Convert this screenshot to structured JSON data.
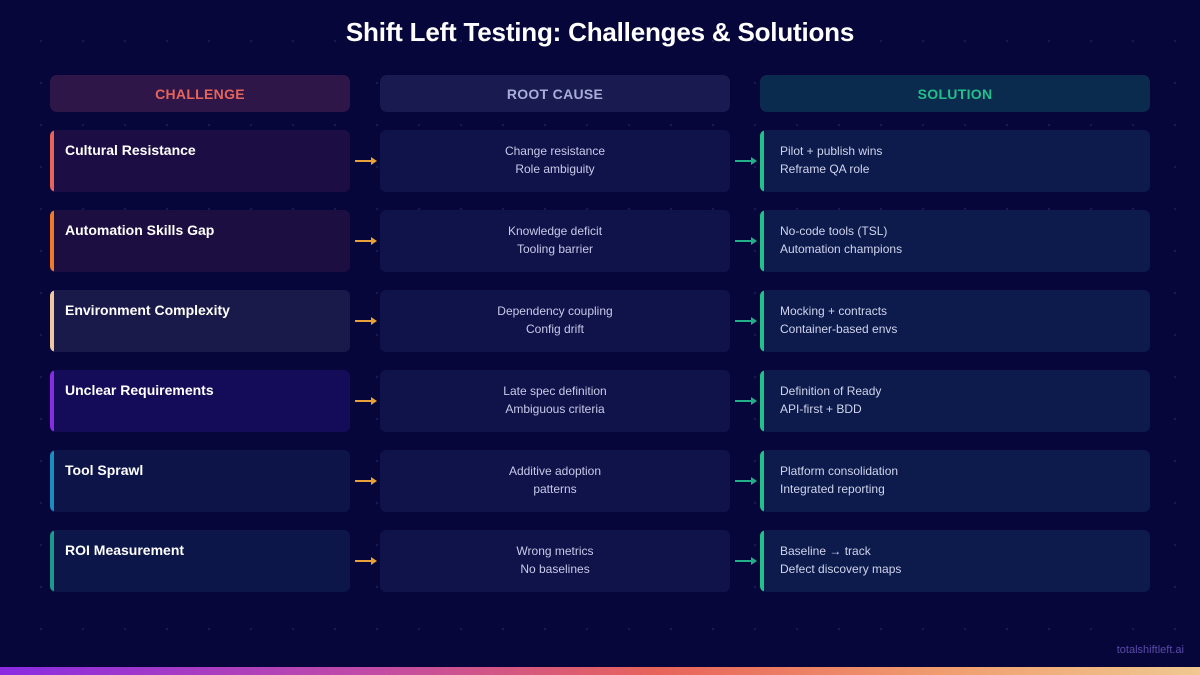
{
  "title": "Shift Left Testing: Challenges & Solutions",
  "headers": {
    "challenge": "CHALLENGE",
    "root_cause": "ROOT CAUSE",
    "solution": "SOLUTION"
  },
  "colors": {
    "background": "#06063a",
    "challenge_header": "#e8645a",
    "root_cause_header": "#a8acd8",
    "solution_header": "#22c08a",
    "arrow_left": "#e8a03a",
    "arrow_right": "#22b08a",
    "solution_accent": "#22c08a"
  },
  "rows": [
    {
      "challenge": "Cultural Resistance",
      "accent": "#e8645a",
      "card_bg": "#1c0e44",
      "root_cause": [
        "Change resistance",
        "Role ambiguity"
      ],
      "solution": [
        "Pilot + publish wins",
        "Reframe QA role"
      ]
    },
    {
      "challenge": "Automation Skills Gap",
      "accent": "#f07a2a",
      "card_bg": "#1c0e40",
      "root_cause": [
        "Knowledge deficit",
        "Tooling barrier"
      ],
      "solution": [
        "No-code tools (TSL)",
        "Automation champions"
      ]
    },
    {
      "challenge": "Environment Complexity",
      "accent": "#f0c8a0",
      "card_bg": "#1a1a4a",
      "root_cause": [
        "Dependency coupling",
        "Config drift"
      ],
      "solution": [
        "Mocking + contracts",
        "Container-based envs"
      ]
    },
    {
      "challenge": "Unclear Requirements",
      "accent": "#8a2be2",
      "card_bg": "#140c58",
      "root_cause": [
        "Late spec definition",
        "Ambiguous criteria"
      ],
      "solution": [
        "Definition of Ready",
        "API-first + BDD"
      ]
    },
    {
      "challenge": "Tool Sprawl",
      "accent": "#1a8fbf",
      "card_bg": "#0c1448",
      "root_cause": [
        "Additive adoption",
        "patterns"
      ],
      "solution": [
        "Platform consolidation",
        "Integrated reporting"
      ]
    },
    {
      "challenge": "ROI Measurement",
      "accent": "#1a9a8a",
      "card_bg": "#0c1648",
      "root_cause": [
        "Wrong metrics",
        "No baselines"
      ],
      "solution": [
        "Baseline → track",
        "Defect discovery maps"
      ]
    }
  ],
  "footer": {
    "brand": "totalshiftleft.ai"
  }
}
